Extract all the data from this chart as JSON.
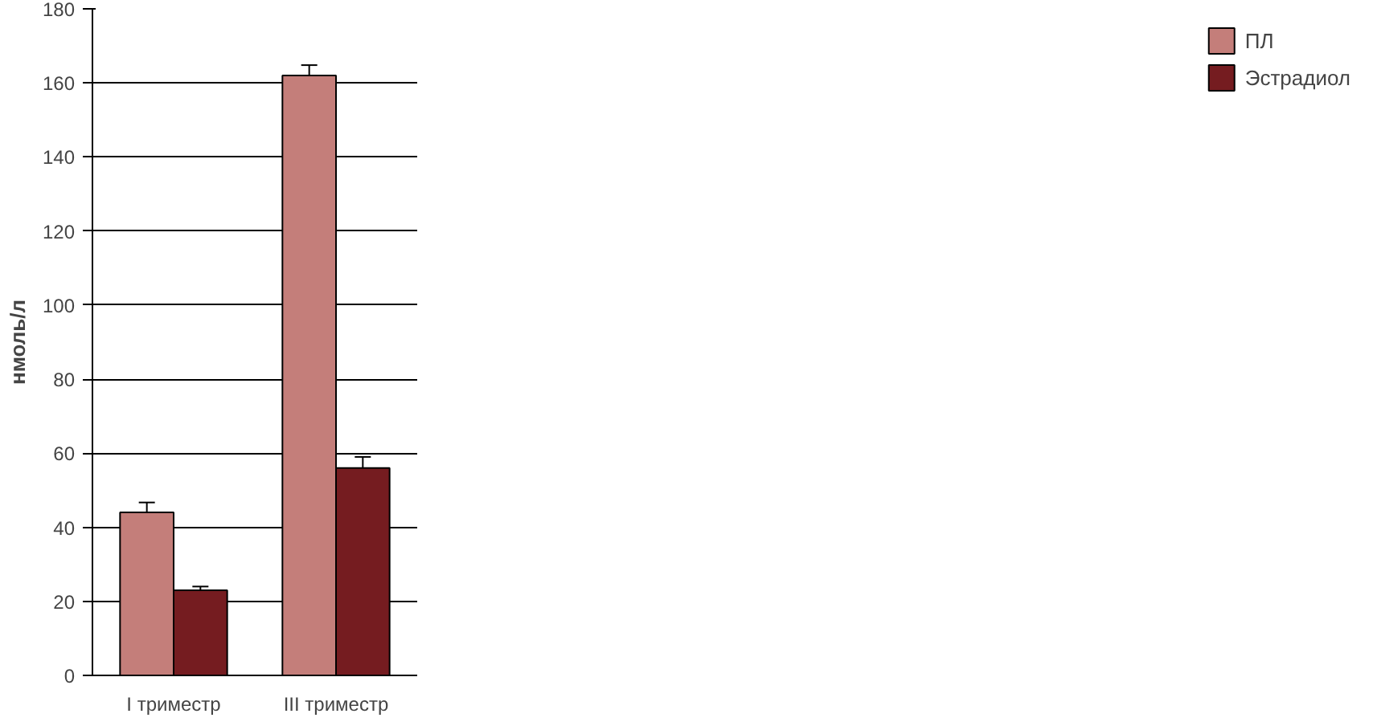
{
  "chart_data": {
    "type": "bar",
    "ylabel": "нмоль/л",
    "categories": [
      "I триместр",
      "III триместр"
    ],
    "series": [
      {
        "name": "ПЛ",
        "color": "#c47e7a",
        "values": [
          44,
          162
        ],
        "errors": [
          2.7,
          2.8
        ]
      },
      {
        "name": "Эстрадиол",
        "color": "#751c20",
        "values": [
          23,
          56
        ],
        "errors": [
          1,
          3
        ]
      }
    ],
    "ylim": [
      0,
      180
    ],
    "yticks": [
      0,
      20,
      40,
      60,
      80,
      100,
      120,
      140,
      160,
      180
    ],
    "grid": "y",
    "legend": "right"
  }
}
